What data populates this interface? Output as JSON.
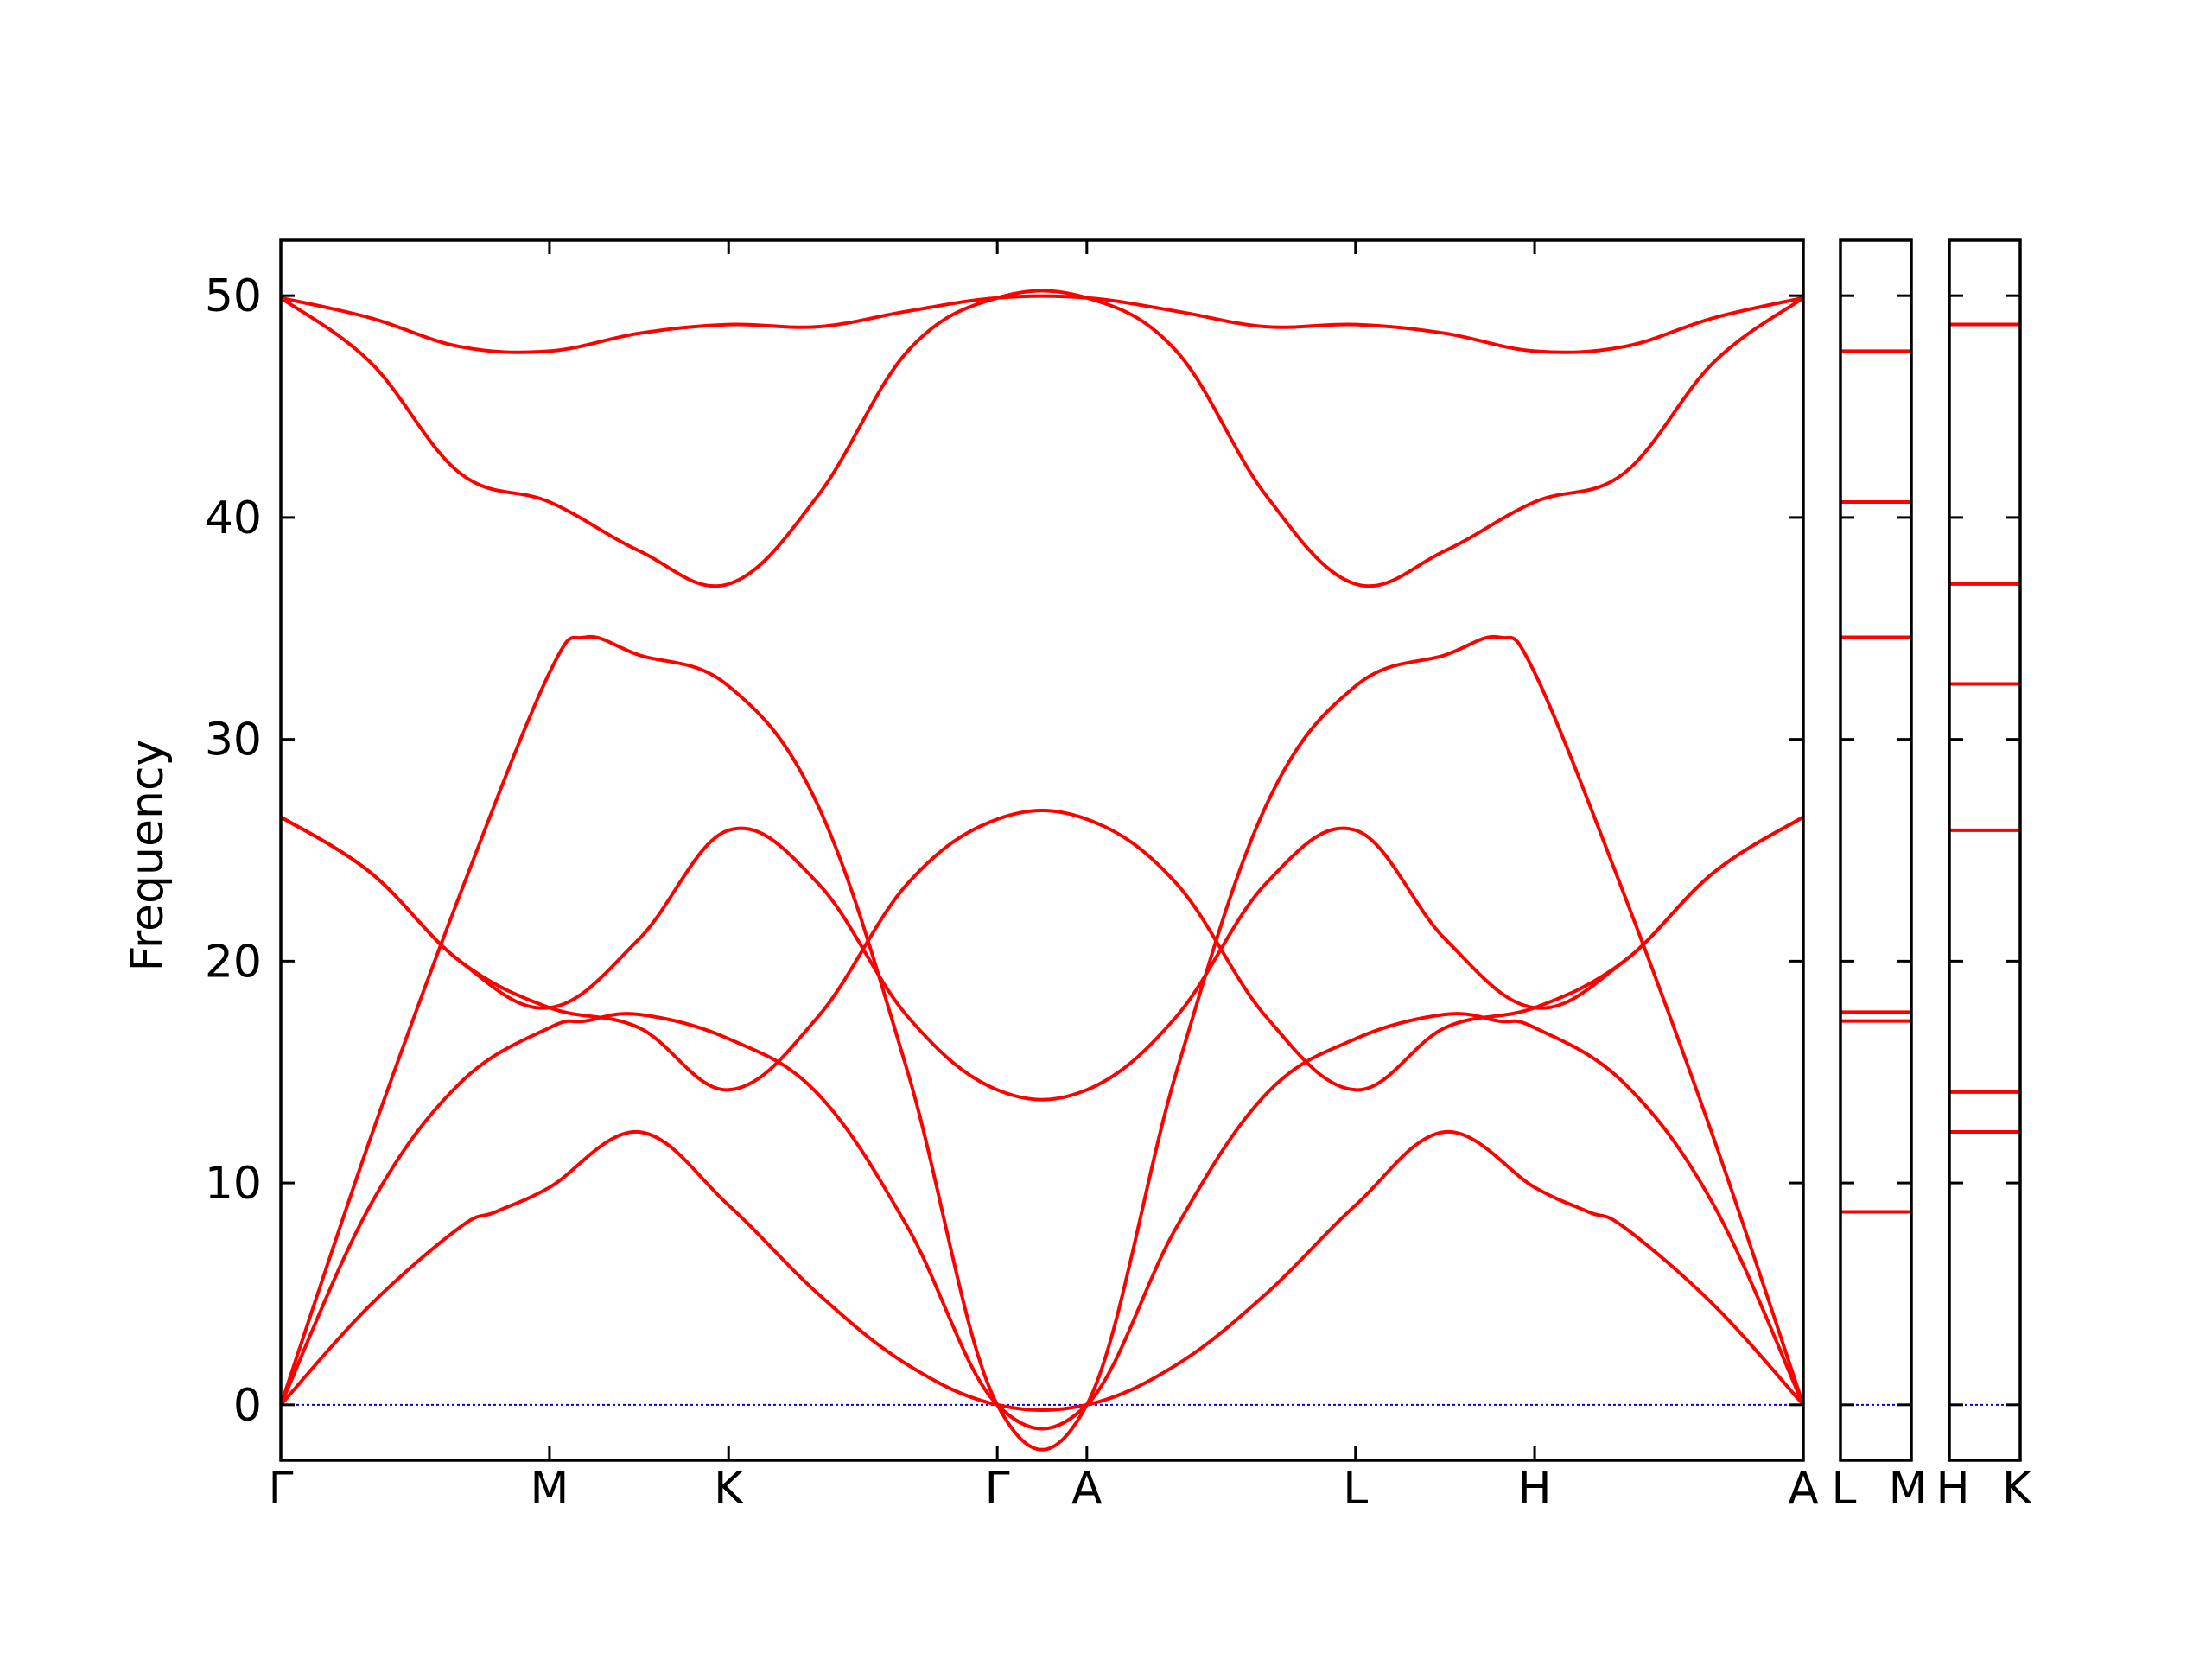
{
  "chart_data": [
    {
      "type": "line",
      "ylabel": "Frequency",
      "ylim": [
        -2.5,
        52.5
      ],
      "yticks": [
        0,
        10,
        20,
        30,
        40,
        50
      ],
      "xticks": [
        "Γ",
        "M",
        "K",
        "Γ",
        "A",
        "L",
        "H",
        "A"
      ],
      "zero_line": true,
      "grid": false,
      "line_color": "#ff0000",
      "zero_line_color": "#0000ff",
      "series": [
        {
          "values": [
            [
              0,
              0
            ],
            [
              0.25,
              4.5
            ],
            [
              0.5,
              8.0
            ],
            [
              0.6,
              8.7
            ],
            [
              0.75,
              9.8
            ],
            [
              1.0,
              12.3
            ],
            [
              1.25,
              9.0
            ],
            [
              1.5,
              5.0
            ],
            [
              1.75,
              1.8
            ],
            [
              2.0,
              0
            ],
            [
              2.25,
              0
            ],
            [
              2.5,
              1.8
            ],
            [
              2.75,
              5.0
            ],
            [
              3.0,
              9.0
            ],
            [
              3.25,
              12.3
            ],
            [
              3.5,
              9.8
            ],
            [
              3.65,
              8.7
            ],
            [
              3.75,
              8.0
            ],
            [
              4.0,
              4.5
            ],
            [
              4.25,
              0
            ]
          ]
        },
        {
          "values": [
            [
              0,
              0
            ],
            [
              0.25,
              9.0
            ],
            [
              0.5,
              14.5
            ],
            [
              0.75,
              17.0
            ],
            [
              0.85,
              17.3
            ],
            [
              1.0,
              17.6
            ],
            [
              1.25,
              16.5
            ],
            [
              1.5,
              14.0
            ],
            [
              1.75,
              8.0
            ],
            [
              2.0,
              0
            ],
            [
              2.25,
              0
            ],
            [
              2.5,
              8.0
            ],
            [
              2.75,
              14.0
            ],
            [
              3.0,
              16.5
            ],
            [
              3.25,
              17.6
            ],
            [
              3.4,
              17.3
            ],
            [
              3.5,
              17.0
            ],
            [
              3.75,
              14.5
            ],
            [
              4.0,
              9.0
            ],
            [
              4.25,
              0
            ]
          ]
        },
        {
          "values": [
            [
              0,
              0
            ],
            [
              0.25,
              12.0
            ],
            [
              0.5,
              23.0
            ],
            [
              0.75,
              33.0
            ],
            [
              0.85,
              34.6
            ],
            [
              1.0,
              33.8
            ],
            [
              1.25,
              32.4
            ],
            [
              1.5,
              27.0
            ],
            [
              1.75,
              15.0
            ],
            [
              2.0,
              0
            ],
            [
              2.25,
              0
            ],
            [
              2.5,
              15.0
            ],
            [
              2.75,
              27.0
            ],
            [
              3.0,
              32.4
            ],
            [
              3.25,
              33.8
            ],
            [
              3.4,
              34.6
            ],
            [
              3.5,
              33.0
            ],
            [
              3.75,
              23.0
            ],
            [
              4.0,
              12.0
            ],
            [
              4.25,
              0
            ]
          ]
        },
        {
          "values": [
            [
              0,
              26.5
            ],
            [
              0.25,
              24.0
            ],
            [
              0.5,
              20.0
            ],
            [
              0.75,
              17.9
            ],
            [
              1.0,
              17.0
            ],
            [
              1.25,
              14.2
            ],
            [
              1.5,
              17.5
            ],
            [
              1.75,
              23.5
            ],
            [
              2.0,
              26.4
            ],
            [
              2.25,
              26.4
            ],
            [
              2.5,
              23.5
            ],
            [
              2.75,
              17.5
            ],
            [
              3.0,
              14.2
            ],
            [
              3.25,
              17.0
            ],
            [
              3.5,
              17.9
            ],
            [
              3.75,
              20.0
            ],
            [
              4.0,
              24.0
            ],
            [
              4.25,
              26.5
            ]
          ]
        },
        {
          "values": [
            [
              0,
              26.5
            ],
            [
              0.25,
              24.0
            ],
            [
              0.5,
              20.0
            ],
            [
              0.75,
              17.9
            ],
            [
              1.0,
              21.0
            ],
            [
              1.25,
              25.9
            ],
            [
              1.5,
              23.5
            ],
            [
              1.75,
              17.5
            ],
            [
              2.0,
              14.2
            ],
            [
              2.25,
              14.2
            ],
            [
              2.5,
              17.5
            ],
            [
              2.75,
              23.5
            ],
            [
              3.0,
              25.9
            ],
            [
              3.25,
              21.0
            ],
            [
              3.5,
              17.9
            ],
            [
              3.75,
              20.0
            ],
            [
              4.0,
              24.0
            ],
            [
              4.25,
              26.5
            ]
          ]
        },
        {
          "values": [
            [
              0,
              49.9
            ],
            [
              0.25,
              47.0
            ],
            [
              0.5,
              42.0
            ],
            [
              0.75,
              40.7
            ],
            [
              1.0,
              38.5
            ],
            [
              1.25,
              37.0
            ],
            [
              1.5,
              41.0
            ],
            [
              1.75,
              47.5
            ],
            [
              2.0,
              49.9
            ],
            [
              2.25,
              49.9
            ],
            [
              2.5,
              47.5
            ],
            [
              2.75,
              41.0
            ],
            [
              3.0,
              37.0
            ],
            [
              3.25,
              38.5
            ],
            [
              3.5,
              40.7
            ],
            [
              3.75,
              42.0
            ],
            [
              4.0,
              47.0
            ],
            [
              4.25,
              49.9
            ]
          ]
        },
        {
          "values": [
            [
              0,
              49.9
            ],
            [
              0.25,
              49.0
            ],
            [
              0.5,
              47.7
            ],
            [
              0.75,
              47.5
            ],
            [
              1.0,
              48.3
            ],
            [
              1.25,
              48.7
            ],
            [
              1.5,
              48.6
            ],
            [
              1.75,
              49.3
            ],
            [
              2.0,
              49.9
            ],
            [
              2.25,
              49.9
            ],
            [
              2.5,
              49.3
            ],
            [
              2.75,
              48.6
            ],
            [
              3.0,
              48.7
            ],
            [
              3.25,
              48.3
            ],
            [
              3.5,
              47.5
            ],
            [
              3.75,
              47.7
            ],
            [
              4.0,
              49.0
            ],
            [
              4.25,
              49.9
            ]
          ]
        }
      ]
    },
    {
      "type": "line",
      "xticks": [
        "L",
        "M"
      ],
      "ylim": [
        -2.5,
        52.5
      ],
      "levels": [
        8.7,
        17.3,
        17.7,
        34.6,
        40.7,
        47.5
      ]
    },
    {
      "type": "line",
      "xticks": [
        "H",
        "K"
      ],
      "ylim": [
        -2.5,
        52.5
      ],
      "levels": [
        12.3,
        14.1,
        25.9,
        32.5,
        37.0,
        48.7
      ]
    }
  ]
}
